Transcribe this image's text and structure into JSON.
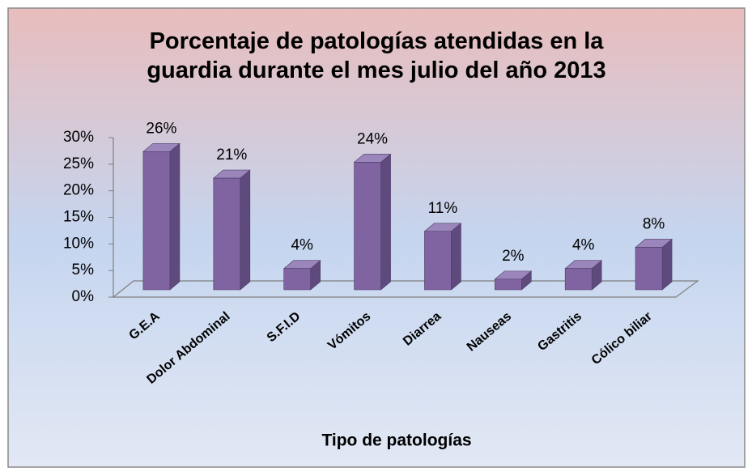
{
  "chart_data": {
    "type": "bar",
    "title": "Porcentaje de patologías atendidas en la guardia durante el mes julio del año 2013",
    "x_label": "Tipo de patologías",
    "categories": [
      "G.E.A",
      "Dolor Abdominal",
      "S.F.I.D",
      "Vómitos",
      "Diarrea",
      "Nauseas",
      "Gastritis",
      "Cólico biliar"
    ],
    "values": [
      26,
      21,
      4,
      24,
      11,
      2,
      4,
      8
    ],
    "value_labels": [
      "26%",
      "21%",
      "4%",
      "24%",
      "11%",
      "2%",
      "4%",
      "8%"
    ],
    "color": "#8064a2",
    "ylim": [
      0,
      30
    ],
    "yticks": [
      {
        "value": 0,
        "label": "0%"
      },
      {
        "value": 5,
        "label": "5%"
      },
      {
        "value": 10,
        "label": "10%"
      },
      {
        "value": 15,
        "label": "15%"
      },
      {
        "value": 20,
        "label": "20%"
      },
      {
        "value": 25,
        "label": "25%"
      },
      {
        "value": 30,
        "label": "30%"
      }
    ]
  }
}
